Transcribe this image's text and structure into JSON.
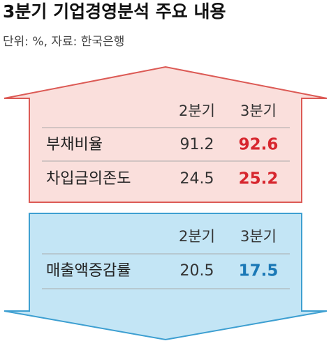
{
  "header": {
    "title": "3분기 기업경영분석 주요 내용",
    "subtitle": "단위: %, 자료: 한국은행"
  },
  "up_table": {
    "columns": [
      "2분기",
      "3분기"
    ],
    "rows": [
      [
        "부채비율",
        91.2,
        92.6
      ],
      [
        "차입금의존도",
        24.5,
        25.2
      ]
    ]
  },
  "down_table": {
    "columns": [
      "2분기",
      "3분기"
    ],
    "rows": [
      [
        "매출액증감률",
        20.5,
        17.5
      ]
    ]
  }
}
